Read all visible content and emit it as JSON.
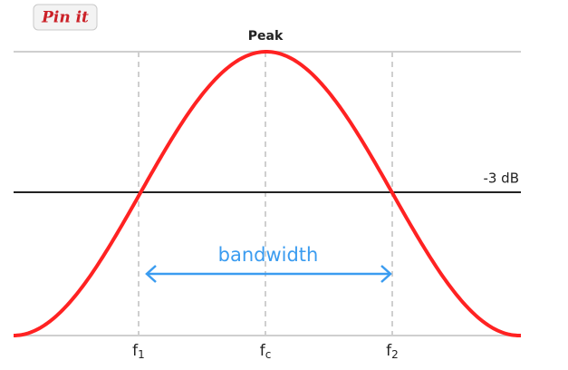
{
  "button": {
    "label": "Pin it"
  },
  "labels": {
    "peak": "Peak",
    "cutoff": "-3 dB",
    "bandwidth": "bandwidth"
  },
  "x_labels": [
    {
      "base": "f",
      "sub": "1"
    },
    {
      "base": "f",
      "sub": "c"
    },
    {
      "base": "f",
      "sub": "2"
    }
  ]
}
